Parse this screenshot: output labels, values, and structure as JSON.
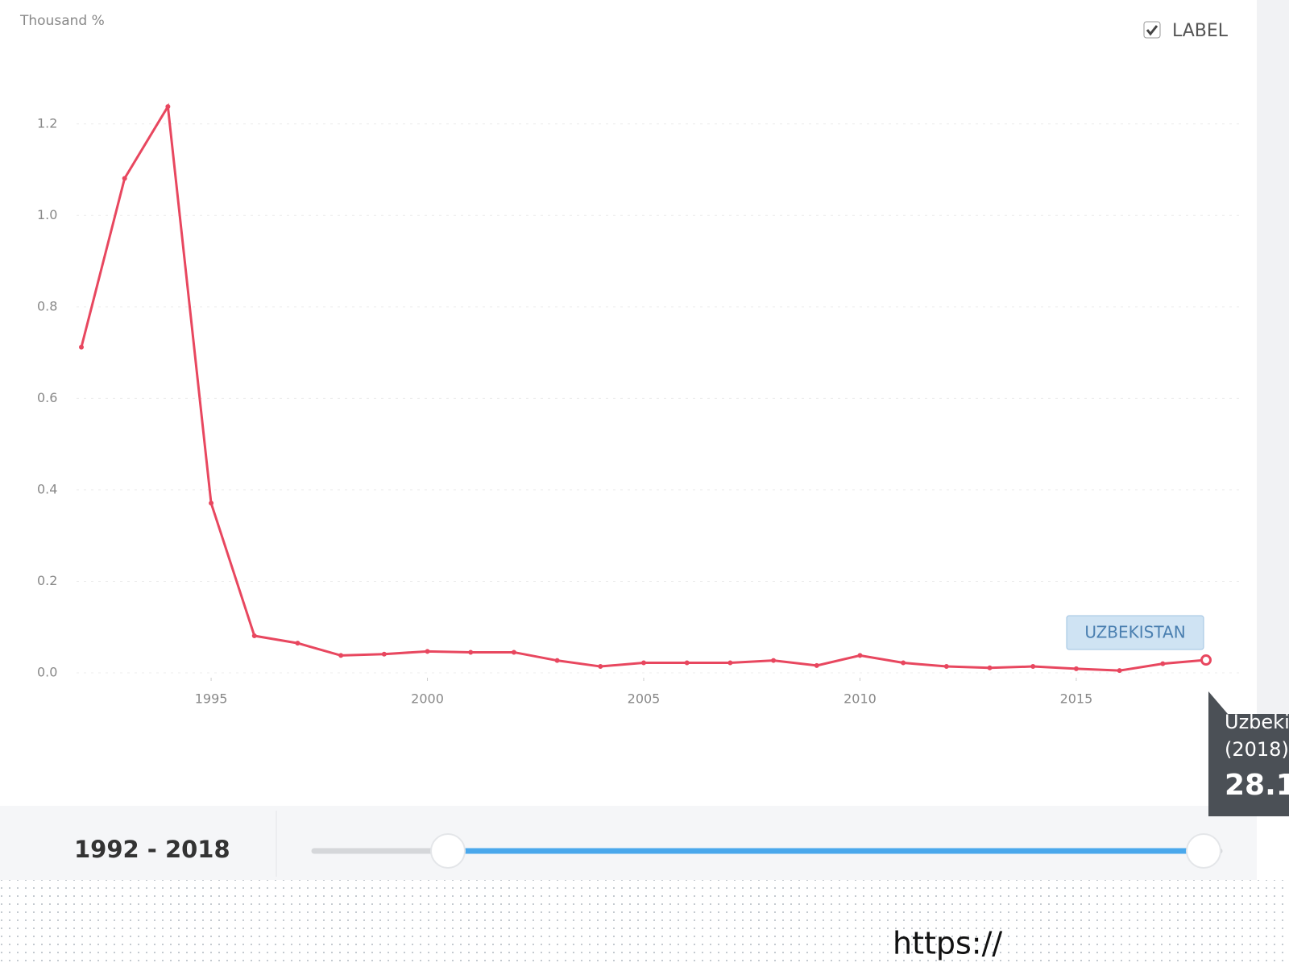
{
  "chart_data": {
    "type": "line",
    "y_axis_label": "Thousand %",
    "x": [
      1992,
      1993,
      1994,
      1995,
      1996,
      1997,
      1998,
      1999,
      2000,
      2001,
      2002,
      2003,
      2004,
      2005,
      2006,
      2007,
      2008,
      2009,
      2010,
      2011,
      2012,
      2013,
      2014,
      2015,
      2016,
      2017,
      2018
    ],
    "series": [
      {
        "name": "UZBEKISTAN",
        "color": "#e8475f",
        "values": [
          0.712,
          1.081,
          1.238,
          0.371,
          0.081,
          0.065,
          0.038,
          0.041,
          0.047,
          0.045,
          0.045,
          0.027,
          0.014,
          0.022,
          0.022,
          0.022,
          0.027,
          0.016,
          0.038,
          0.022,
          0.014,
          0.011,
          0.014,
          0.009,
          0.005,
          0.02,
          0.0281
        ]
      }
    ],
    "xlim": [
      1992,
      2018
    ],
    "xticks": [
      1995,
      2000,
      2005,
      2010,
      2015
    ],
    "ylim": [
      0,
      1.3
    ],
    "yticks": [
      {
        "value": 0,
        "label": "0.0"
      },
      0.2,
      0.4,
      0.6,
      0.8,
      {
        "value": 1,
        "label": "1.0"
      },
      1.2
    ],
    "grid": true
  },
  "ui": {
    "label_toggle": "LABEL",
    "range": "1992 - 2018",
    "tooltip": {
      "name": "Uzbeki",
      "year": "(2018)",
      "value": "28.1"
    },
    "url": "https://"
  }
}
